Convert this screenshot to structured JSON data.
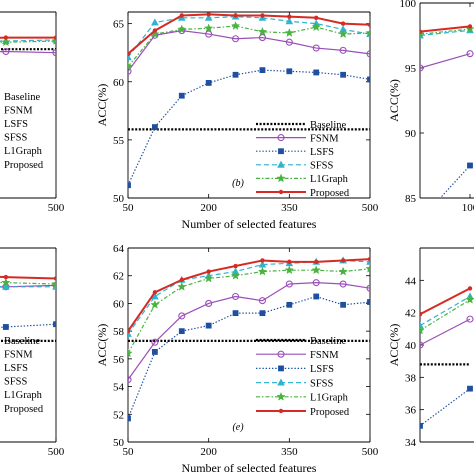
{
  "chart_data": [
    {
      "panel": "left-top",
      "type": "line",
      "x_ticks": [
        500
      ],
      "series": [
        {
          "name": "Baseline",
          "x": [
            50,
            500
          ],
          "y": [
            62.8,
            62.8
          ]
        },
        {
          "name": "FSNM",
          "x": [
            50,
            100,
            150,
            200,
            250,
            300,
            350,
            400,
            450,
            500
          ],
          "y": [
            62.0,
            62.3,
            62.4,
            62.5,
            62.5,
            62.6,
            62.6,
            62.5,
            62.6,
            62.5
          ]
        },
        {
          "name": "SFSS",
          "x": [
            50,
            100,
            150,
            200,
            250,
            300,
            350,
            400,
            450,
            500
          ],
          "y": [
            63.3,
            63.4,
            63.5,
            63.5,
            63.5,
            63.6,
            63.5,
            63.6,
            63.5,
            63.6
          ]
        },
        {
          "name": "L1Graph",
          "x": [
            50,
            100,
            150,
            200,
            250,
            300,
            350,
            400,
            450,
            500
          ],
          "y": [
            63.3,
            63.4,
            63.4,
            63.5,
            63.4,
            63.5,
            63.5,
            63.5,
            63.4,
            63.5
          ]
        },
        {
          "name": "Proposed",
          "x": [
            50,
            100,
            150,
            200,
            250,
            300,
            350,
            400,
            450,
            500
          ],
          "y": [
            63.5,
            63.6,
            63.7,
            63.7,
            63.7,
            63.8,
            63.8,
            63.7,
            63.8,
            63.8
          ]
        }
      ],
      "legend": [
        "Baseline",
        "FSNM",
        "LSFS",
        "SFSS",
        "L1Graph",
        "Proposed"
      ]
    },
    {
      "panel": "b",
      "type": "line",
      "label": "(b)",
      "xlabel": "Number of selected features",
      "ylabel": "ACC(%)",
      "xlim": [
        50,
        500
      ],
      "ylim": [
        50,
        66
      ],
      "x_ticks": [
        50,
        200,
        350,
        500
      ],
      "x_tick_labels": [
        "50",
        "200",
        "350",
        "500"
      ],
      "y_ticks": [
        50,
        55,
        60,
        65
      ],
      "y_tick_labels": [
        "50",
        "55",
        "60",
        "65"
      ],
      "legend": [
        "Baseline",
        "FSNM",
        "LSFS",
        "SFSS",
        "L1Graph",
        "Proposed"
      ],
      "series": [
        {
          "name": "Baseline",
          "x": [
            50,
            500
          ],
          "y": [
            55.9,
            55.9
          ]
        },
        {
          "name": "FSNM",
          "x": [
            50,
            100,
            150,
            200,
            250,
            300,
            350,
            400,
            450,
            500
          ],
          "y": [
            60.9,
            64.0,
            64.4,
            64.1,
            63.7,
            63.8,
            63.4,
            62.9,
            62.7,
            62.4
          ]
        },
        {
          "name": "LSFS",
          "x": [
            50,
            100,
            150,
            200,
            250,
            300,
            350,
            400,
            450,
            500
          ],
          "y": [
            51.1,
            56.1,
            58.8,
            59.9,
            60.6,
            61.0,
            60.9,
            60.8,
            60.6,
            60.2
          ]
        },
        {
          "name": "SFSS",
          "x": [
            50,
            100,
            150,
            200,
            250,
            300,
            350,
            400,
            450,
            500
          ],
          "y": [
            62.1,
            65.1,
            65.5,
            65.5,
            65.6,
            65.5,
            65.2,
            65.0,
            64.5,
            64.1
          ]
        },
        {
          "name": "L1Graph",
          "x": [
            50,
            100,
            150,
            200,
            250,
            300,
            350,
            400,
            450,
            500
          ],
          "y": [
            61.3,
            64.1,
            64.5,
            64.6,
            64.8,
            64.3,
            64.2,
            64.7,
            64.1,
            64.2
          ]
        },
        {
          "name": "Proposed",
          "x": [
            50,
            100,
            150,
            200,
            250,
            300,
            350,
            400,
            450,
            500
          ],
          "y": [
            62.4,
            64.4,
            65.7,
            65.8,
            65.7,
            65.7,
            65.6,
            65.5,
            65.0,
            64.9
          ]
        }
      ]
    },
    {
      "panel": "right-top",
      "type": "line",
      "ylabel": "ACC(%)",
      "ylim": [
        85,
        100
      ],
      "y_ticks": [
        85,
        90,
        95,
        100
      ],
      "y_tick_labels": [
        "85",
        "90",
        "95",
        "100"
      ],
      "x_ticks": [
        100
      ],
      "x_tick_labels": [
        "100"
      ],
      "series": [
        {
          "name": "FSNM",
          "x": [
            50,
            100
          ],
          "y": [
            95.0,
            96.1
          ]
        },
        {
          "name": "LSFS",
          "x": [
            50,
            100
          ],
          "y": [
            83.3,
            87.5
          ]
        },
        {
          "name": "SFSS",
          "x": [
            50,
            100
          ],
          "y": [
            97.5,
            97.9
          ]
        },
        {
          "name": "L1Graph",
          "x": [
            50,
            100
          ],
          "y": [
            97.6,
            98.0
          ]
        },
        {
          "name": "Proposed",
          "x": [
            50,
            100
          ],
          "y": [
            97.8,
            98.2
          ]
        }
      ]
    },
    {
      "panel": "left-bottom",
      "type": "line",
      "x_ticks": [
        500
      ],
      "series": [
        {
          "name": "Baseline",
          "x": [
            50,
            500
          ],
          "y": [
            57.3,
            57.3
          ]
        },
        {
          "name": "FSNM",
          "x": [
            50,
            100,
            150,
            200,
            250,
            300,
            350,
            400,
            450,
            500
          ],
          "y": [
            60.8,
            60.9,
            61.0,
            61.0,
            61.1,
            61.1,
            61.2,
            61.1,
            61.2,
            61.3
          ]
        },
        {
          "name": "LSFS",
          "x": [
            50,
            100,
            150,
            200,
            250,
            300,
            350,
            400,
            450,
            500
          ],
          "y": [
            57.0,
            57.3,
            57.5,
            57.7,
            57.8,
            57.9,
            58.0,
            58.1,
            58.3,
            58.5
          ]
        },
        {
          "name": "SFSS",
          "x": [
            50,
            100,
            150,
            200,
            250,
            300,
            350,
            400,
            450,
            500
          ],
          "y": [
            61.3,
            61.4,
            61.5,
            61.4,
            61.5,
            61.5,
            61.5,
            61.3,
            61.2,
            61.2
          ]
        },
        {
          "name": "L1Graph",
          "x": [
            50,
            100,
            150,
            200,
            250,
            300,
            350,
            400,
            450,
            500
          ],
          "y": [
            61.7,
            61.8,
            61.8,
            61.8,
            61.8,
            61.8,
            61.7,
            61.6,
            61.5,
            61.4
          ]
        },
        {
          "name": "Proposed",
          "x": [
            50,
            100,
            150,
            200,
            250,
            300,
            350,
            400,
            450,
            500
          ],
          "y": [
            62.0,
            62.1,
            62.1,
            62.1,
            62.2,
            62.2,
            62.2,
            62.0,
            61.9,
            61.8
          ]
        }
      ],
      "legend": [
        "Baseline",
        "FSNM",
        "LSFS",
        "SFSS",
        "L1Graph",
        "Proposed"
      ]
    },
    {
      "panel": "e",
      "type": "line",
      "label": "(e)",
      "xlabel": "Number of selected features",
      "ylabel": "ACC(%)",
      "xlim": [
        50,
        500
      ],
      "ylim": [
        50,
        64
      ],
      "x_ticks": [
        50,
        200,
        350,
        500
      ],
      "x_tick_labels": [
        "50",
        "200",
        "350",
        "500"
      ],
      "y_ticks": [
        50,
        52,
        54,
        56,
        58,
        60,
        62,
        64
      ],
      "y_tick_labels": [
        "50",
        "52",
        "54",
        "56",
        "58",
        "60",
        "62",
        "64"
      ],
      "legend": [
        "Baseline",
        "FSNM",
        "LSFS",
        "SFSS",
        "L1Graph",
        "Proposed"
      ],
      "series": [
        {
          "name": "Baseline",
          "x": [
            50,
            500
          ],
          "y": [
            57.3,
            57.3
          ]
        },
        {
          "name": "FSNM",
          "x": [
            50,
            100,
            150,
            200,
            250,
            300,
            350,
            400,
            450,
            500
          ],
          "y": [
            54.5,
            57.2,
            59.1,
            60.0,
            60.5,
            60.2,
            61.4,
            61.5,
            61.4,
            61.1
          ]
        },
        {
          "name": "LSFS",
          "x": [
            50,
            100,
            150,
            200,
            250,
            300,
            350,
            400,
            450,
            500
          ],
          "y": [
            51.7,
            56.5,
            58.0,
            58.4,
            59.3,
            59.3,
            59.9,
            60.5,
            59.9,
            60.1
          ]
        },
        {
          "name": "SFSS",
          "x": [
            50,
            100,
            150,
            200,
            250,
            300,
            350,
            400,
            450,
            500
          ],
          "y": [
            57.8,
            60.5,
            61.7,
            62.0,
            62.3,
            62.8,
            62.9,
            63.0,
            63.1,
            63.0
          ]
        },
        {
          "name": "L1Graph",
          "x": [
            50,
            100,
            150,
            200,
            250,
            300,
            350,
            400,
            450,
            500
          ],
          "y": [
            56.4,
            59.9,
            61.2,
            61.8,
            62.0,
            62.3,
            62.4,
            62.4,
            62.3,
            62.5
          ]
        },
        {
          "name": "Proposed",
          "x": [
            50,
            100,
            150,
            200,
            250,
            300,
            350,
            400,
            450,
            500
          ],
          "y": [
            58.0,
            60.8,
            61.7,
            62.3,
            62.7,
            63.1,
            63.0,
            63.0,
            63.1,
            63.2
          ]
        }
      ]
    },
    {
      "panel": "right-bottom",
      "type": "line",
      "ylabel": "ACC(%)",
      "ylim": [
        34,
        46
      ],
      "y_ticks": [
        34,
        36,
        38,
        40,
        42,
        44
      ],
      "y_tick_labels": [
        "34",
        "36",
        "38",
        "40",
        "42",
        "44"
      ],
      "series": [
        {
          "name": "Baseline",
          "x": [
            50,
            100
          ],
          "y": [
            38.8,
            38.8
          ]
        },
        {
          "name": "FSNM",
          "x": [
            50,
            100
          ],
          "y": [
            40.0,
            41.6
          ]
        },
        {
          "name": "LSFS",
          "x": [
            50,
            100
          ],
          "y": [
            35.0,
            37.3
          ]
        },
        {
          "name": "SFSS",
          "x": [
            50,
            100
          ],
          "y": [
            41.2,
            43.0
          ]
        },
        {
          "name": "L1Graph",
          "x": [
            50,
            100
          ],
          "y": [
            40.9,
            42.8
          ]
        },
        {
          "name": "Proposed",
          "x": [
            50,
            100
          ],
          "y": [
            41.9,
            43.5
          ]
        }
      ]
    }
  ],
  "styles": {
    "Baseline": {
      "color": "#000000",
      "marker": "none"
    },
    "FSNM": {
      "color": "#9a4fb8",
      "marker": "circle"
    },
    "LSFS": {
      "color": "#1f4fa0",
      "marker": "square"
    },
    "SFSS": {
      "color": "#2fb3d1",
      "marker": "triangle"
    },
    "L1Graph": {
      "color": "#49b33f",
      "marker": "star"
    },
    "Proposed": {
      "color": "#d62a24",
      "marker": "dot"
    }
  }
}
